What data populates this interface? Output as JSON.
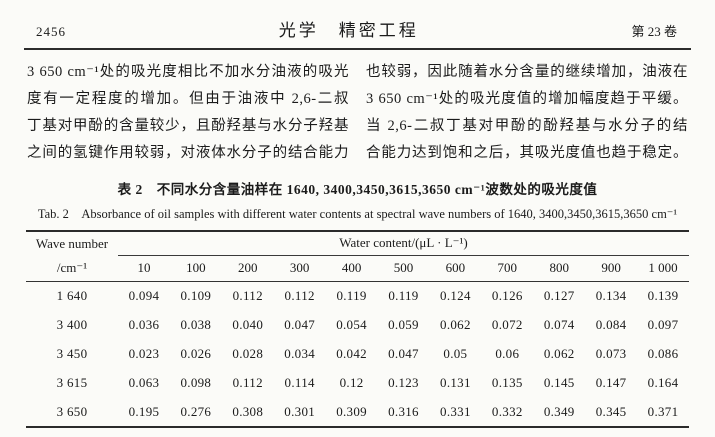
{
  "page_header": {
    "page_number": "2456",
    "journal_title": "光学　精密工程",
    "volume": "第 23 卷"
  },
  "body": {
    "left_lines": [
      "3 650 cm⁻¹处的吸光度相比不加水分油液的吸光",
      "度有一定程度的增加。但由于油液中 2,6-二叔",
      "丁基对甲酚的含量较少，且酚羟基与水分子羟基",
      "之间的氢键作用较弱，对液体水分子的结合能力"
    ],
    "right_lines": [
      "也较弱，因此随着水分含量的继续增加，油液在",
      "3 650 cm⁻¹处的吸光度值的增加幅度趋于平缓。",
      "当 2,6-二叔丁基对甲酚的酚羟基与水分子的结",
      "合能力达到饱和之后，其吸光度值也趋于稳定。"
    ]
  },
  "table": {
    "caption_zh": "表 2　不同水分含量油样在 1640, 3400,3450,3615,3650 cm⁻¹波数处的吸光度值",
    "caption_en": "Tab. 2　Absorbance of oil samples with different water contents at spectral wave numbers of 1640, 3400,3450,3615,3650 cm⁻¹",
    "col1_header_line1": "Wave number",
    "col1_header_line2": "/cm⁻¹",
    "group_header": "Water content/(μL · L⁻¹)",
    "columns": [
      "10",
      "100",
      "200",
      "300",
      "400",
      "500",
      "600",
      "700",
      "800",
      "900",
      "1 000"
    ],
    "rows": [
      {
        "wave": "1 640",
        "values": [
          "0.094",
          "0.109",
          "0.112",
          "0.112",
          "0.119",
          "0.119",
          "0.124",
          "0.126",
          "0.127",
          "0.134",
          "0.139"
        ]
      },
      {
        "wave": "3 400",
        "values": [
          "0.036",
          "0.038",
          "0.040",
          "0.047",
          "0.054",
          "0.059",
          "0.062",
          "0.072",
          "0.074",
          "0.084",
          "0.097"
        ]
      },
      {
        "wave": "3 450",
        "values": [
          "0.023",
          "0.026",
          "0.028",
          "0.034",
          "0.042",
          "0.047",
          "0.05",
          "0.06",
          "0.062",
          "0.073",
          "0.086"
        ]
      },
      {
        "wave": "3 615",
        "values": [
          "0.063",
          "0.098",
          "0.112",
          "0.114",
          "0.12",
          "0.123",
          "0.131",
          "0.135",
          "0.145",
          "0.147",
          "0.164"
        ]
      },
      {
        "wave": "3 650",
        "values": [
          "0.195",
          "0.276",
          "0.308",
          "0.301",
          "0.309",
          "0.316",
          "0.331",
          "0.332",
          "0.349",
          "0.345",
          "0.371"
        ]
      }
    ]
  }
}
